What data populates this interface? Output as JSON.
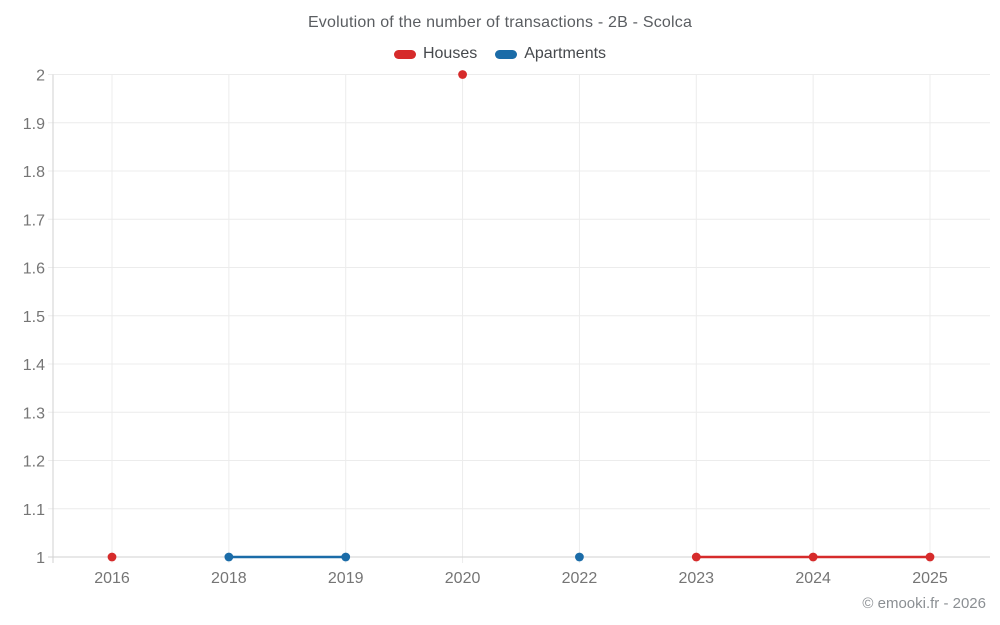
{
  "title": "Evolution of the number of transactions - 2B - Scolca",
  "copyright": "© emooki.fr - 2026",
  "legend": {
    "items": [
      {
        "label": "Houses",
        "color": "#d62b2b"
      },
      {
        "label": "Apartments",
        "color": "#1b6ca8"
      }
    ]
  },
  "chart_data": {
    "type": "line",
    "title": "Evolution of the number of transactions - 2B - Scolca",
    "categories": [
      "2016",
      "2018",
      "2019",
      "2020",
      "2022",
      "2023",
      "2024",
      "2025"
    ],
    "series": [
      {
        "name": "Houses",
        "color": "#d62b2b",
        "values": [
          1,
          null,
          null,
          2,
          null,
          1,
          1,
          1
        ]
      },
      {
        "name": "Apartments",
        "color": "#1b6ca8",
        "values": [
          null,
          1,
          1,
          null,
          1,
          null,
          null,
          null
        ]
      }
    ],
    "xlabel": "",
    "ylabel": "",
    "ylim": [
      1,
      2
    ],
    "yticks": [
      1,
      1.1,
      1.2,
      1.3,
      1.4,
      1.5,
      1.6,
      1.7,
      1.8,
      1.9,
      2
    ],
    "grid": true,
    "legend_position": "top"
  }
}
